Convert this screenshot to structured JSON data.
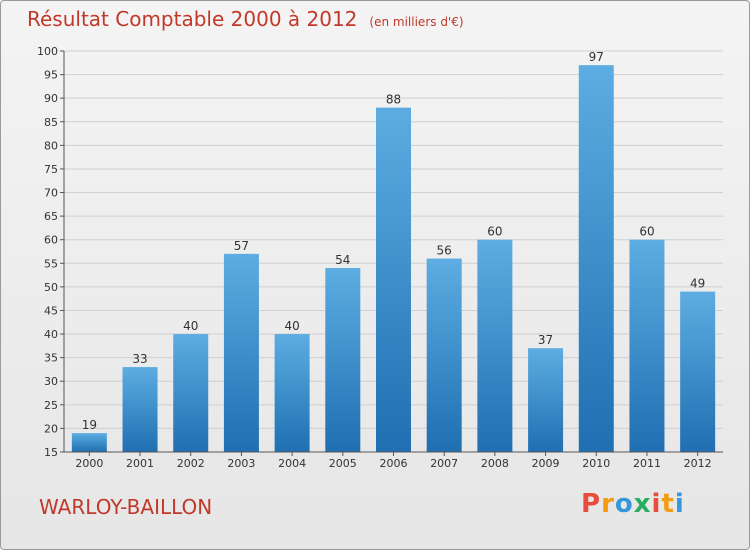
{
  "chart_data": {
    "type": "bar",
    "title": "Résultat Comptable 2000 à 2012",
    "subtitle": "(en milliers d'€)",
    "categories": [
      "2000",
      "2001",
      "2002",
      "2003",
      "2004",
      "2005",
      "2006",
      "2007",
      "2008",
      "2009",
      "2010",
      "2011",
      "2012"
    ],
    "values": [
      19,
      33,
      40,
      57,
      40,
      54,
      88,
      56,
      60,
      37,
      97,
      60,
      49
    ],
    "ylim": [
      15,
      100
    ],
    "yticks": [
      15,
      20,
      25,
      30,
      35,
      40,
      45,
      50,
      55,
      60,
      65,
      70,
      75,
      80,
      85,
      90,
      95,
      100
    ],
    "xlabel": "",
    "ylabel": "",
    "grid": true
  },
  "place_name": "WARLOY-BAILLON",
  "logo": {
    "letters": [
      "P",
      "r",
      "o",
      "x",
      "i",
      "t",
      "i"
    ],
    "colors": [
      "#e74c3c",
      "#f39c12",
      "#3498db",
      "#27ae60",
      "#e74c3c",
      "#f39c12",
      "#3498db"
    ]
  },
  "colors": {
    "bar_top": "#5dade2",
    "bar_bottom": "#1f6fb2",
    "title": "#c0392b"
  }
}
